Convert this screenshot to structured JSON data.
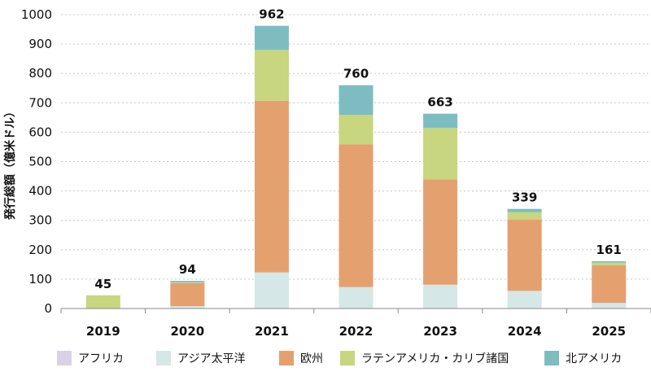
{
  "chart_data": {
    "type": "bar",
    "stacked": true,
    "ylabel": "発行総額（億米ドル）",
    "xlabel": "",
    "ylim": [
      0,
      1000
    ],
    "yticks": [
      0,
      100,
      200,
      300,
      400,
      500,
      600,
      700,
      800,
      900,
      1000
    ],
    "grid": "y-dashed",
    "legend_position": "bottom",
    "categories": [
      "2019",
      "2020",
      "2021",
      "2022",
      "2023",
      "2024",
      "2025"
    ],
    "totals": [
      45,
      94,
      962,
      760,
      663,
      339,
      161
    ],
    "series": [
      {
        "name": "アフリカ",
        "color": "#d9d2e6",
        "values": [
          0,
          0,
          0,
          0,
          0,
          0,
          0
        ]
      },
      {
        "name": "アジア太平洋",
        "color": "#d5e7e6",
        "values": [
          0,
          8,
          123,
          73,
          81,
          60,
          19
        ]
      },
      {
        "name": "欧州",
        "color": "#e5a06f",
        "values": [
          0,
          78,
          584,
          486,
          358,
          243,
          128
        ]
      },
      {
        "name": "ラテンアメリカ・カリブ諸国",
        "color": "#c7d67f",
        "values": [
          45,
          3,
          173,
          100,
          176,
          25,
          9
        ]
      },
      {
        "name": "北アメリカ",
        "color": "#7dbdc2",
        "values": [
          0,
          5,
          82,
          101,
          48,
          11,
          5
        ]
      }
    ]
  }
}
